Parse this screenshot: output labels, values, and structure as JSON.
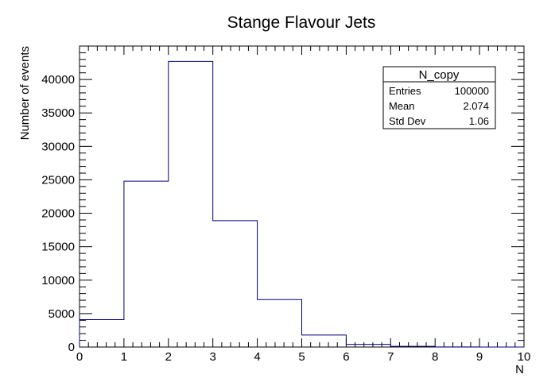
{
  "chart_data": {
    "type": "bar",
    "title": "Stange Flavour Jets",
    "xlabel": "N",
    "ylabel": "Number of events",
    "xlim": [
      0,
      10
    ],
    "ylim": [
      0,
      45000
    ],
    "x_ticks": [
      0,
      1,
      2,
      3,
      4,
      5,
      6,
      7,
      8,
      9,
      10
    ],
    "y_ticks": [
      0,
      5000,
      10000,
      15000,
      20000,
      25000,
      30000,
      35000,
      40000
    ],
    "bin_edges": [
      0,
      1,
      2,
      3,
      4,
      5,
      6,
      7,
      8,
      9,
      10
    ],
    "values": [
      4100,
      24800,
      42700,
      18900,
      7100,
      1800,
      400,
      100,
      20,
      5
    ],
    "line_color": "#000080",
    "grid": false
  },
  "stats_box": {
    "title": "N_copy",
    "rows": [
      {
        "label": "Entries",
        "value": "100000"
      },
      {
        "label": "Mean",
        "value": "2.074"
      },
      {
        "label": "Std Dev",
        "value": "1.06"
      }
    ],
    "position": "top-right"
  }
}
